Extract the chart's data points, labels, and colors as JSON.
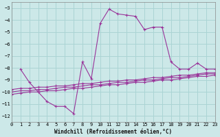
{
  "bg_color": "#cce8e8",
  "grid_color": "#aad4d4",
  "line_color": "#993399",
  "xlabel": "Windchill (Refroidissement éolien,°C)",
  "xlim": [
    0,
    23
  ],
  "ylim": [
    -12.5,
    -2.5
  ],
  "xticks": [
    0,
    1,
    2,
    3,
    4,
    5,
    6,
    7,
    8,
    9,
    10,
    11,
    12,
    13,
    14,
    15,
    16,
    17,
    18,
    19,
    20,
    21,
    22,
    23
  ],
  "yticks": [
    -12,
    -11,
    -10,
    -9,
    -8,
    -7,
    -6,
    -5,
    -4,
    -3
  ],
  "main_x": [
    1,
    2,
    3,
    4,
    5,
    6,
    7,
    8,
    9,
    10,
    11,
    12,
    13,
    14,
    15,
    16,
    17,
    18,
    19,
    20,
    21,
    22,
    23
  ],
  "main_y": [
    -8.1,
    -9.2,
    -10.0,
    -10.8,
    -11.2,
    -11.2,
    -11.8,
    -7.5,
    -8.9,
    -4.3,
    -3.1,
    -3.5,
    -3.6,
    -3.7,
    -4.8,
    -4.6,
    -4.6,
    -7.5,
    -8.1,
    -8.1,
    -7.6,
    -8.1,
    -8.1
  ],
  "line2_x": [
    0,
    1,
    2,
    3,
    4,
    5,
    6,
    7,
    8,
    9,
    10,
    11,
    12,
    13,
    14,
    15,
    16,
    17,
    18,
    19,
    20,
    21,
    22,
    23
  ],
  "line2_y": [
    -9.8,
    -9.7,
    -9.7,
    -9.6,
    -9.6,
    -9.5,
    -9.5,
    -9.4,
    -9.3,
    -9.3,
    -9.2,
    -9.1,
    -9.1,
    -9.0,
    -9.0,
    -8.9,
    -8.8,
    -8.8,
    -8.7,
    -8.6,
    -8.6,
    -8.5,
    -8.4,
    -8.4
  ],
  "line3_x": [
    0,
    1,
    2,
    3,
    4,
    5,
    6,
    7,
    8,
    9,
    10,
    11,
    12,
    13,
    14,
    15,
    16,
    17,
    18,
    19,
    20,
    21,
    22,
    23
  ],
  "line3_y": [
    -10.0,
    -9.9,
    -9.9,
    -9.8,
    -9.8,
    -9.7,
    -9.6,
    -9.6,
    -9.5,
    -9.4,
    -9.4,
    -9.3,
    -9.2,
    -9.2,
    -9.1,
    -9.0,
    -9.0,
    -8.9,
    -8.8,
    -8.8,
    -8.7,
    -8.6,
    -8.5,
    -8.5
  ],
  "line4_x": [
    0,
    1,
    2,
    3,
    4,
    5,
    6,
    7,
    8,
    9,
    10,
    11,
    12,
    13,
    14,
    15,
    16,
    17,
    18,
    19,
    20,
    21,
    22,
    23
  ],
  "line4_y": [
    -10.2,
    -10.1,
    -10.0,
    -10.0,
    -9.9,
    -9.9,
    -9.8,
    -9.7,
    -9.7,
    -9.6,
    -9.5,
    -9.4,
    -9.4,
    -9.3,
    -9.2,
    -9.2,
    -9.1,
    -9.0,
    -9.0,
    -8.9,
    -8.8,
    -8.7,
    -8.7,
    -8.6
  ]
}
